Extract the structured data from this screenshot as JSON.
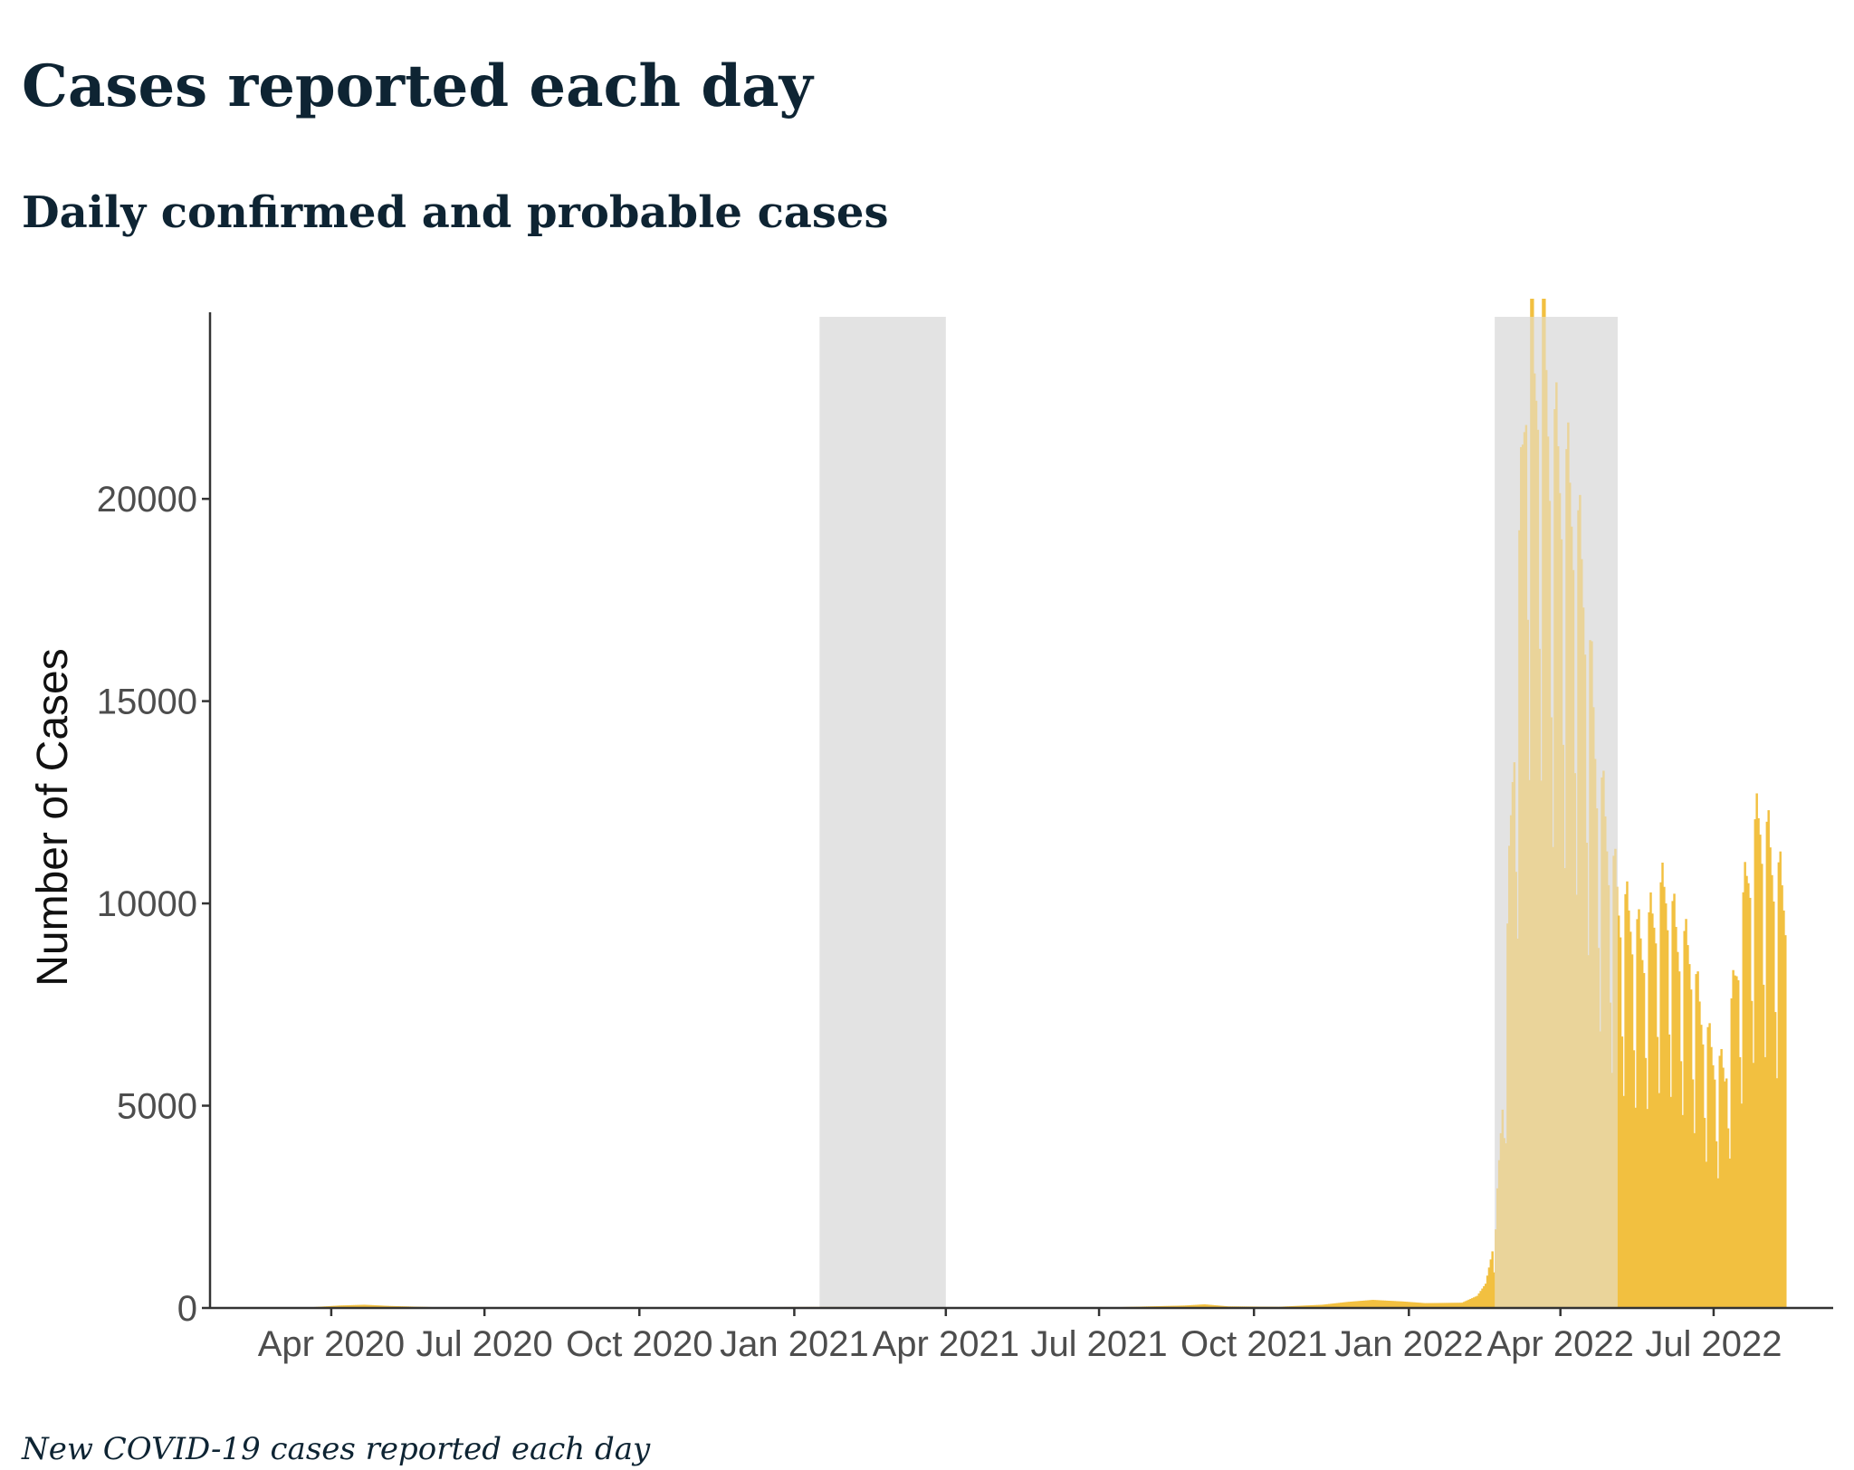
{
  "page": {
    "heading": "Cases reported each day",
    "caption": "New COVID-19 cases reported each day"
  },
  "chart_data": {
    "type": "bar",
    "title": "Daily confirmed and probable cases",
    "xlabel": "",
    "ylabel": "Number of Cases",
    "x_axis": {
      "type": "date",
      "range": [
        "2020-01-20",
        "2022-09-10"
      ],
      "ticks": [
        {
          "date": "2020-04-01",
          "label": "Apr 2020"
        },
        {
          "date": "2020-07-01",
          "label": "Jul 2020"
        },
        {
          "date": "2020-10-01",
          "label": "Oct 2020"
        },
        {
          "date": "2021-01-01",
          "label": "Jan 2021"
        },
        {
          "date": "2021-04-01",
          "label": "Apr 2021"
        },
        {
          "date": "2021-07-01",
          "label": "Jul 2021"
        },
        {
          "date": "2021-10-01",
          "label": "Oct 2021"
        },
        {
          "date": "2022-01-01",
          "label": "Jan 2022"
        },
        {
          "date": "2022-04-01",
          "label": "Apr 2022"
        },
        {
          "date": "2022-07-01",
          "label": "Jul 2022"
        }
      ]
    },
    "y_axis": {
      "ylim": [
        0,
        24500
      ],
      "ticks": [
        0,
        5000,
        10000,
        15000,
        20000
      ],
      "tick_labels": [
        "0",
        "5000",
        "10000",
        "15000",
        "20000"
      ]
    },
    "grid": false,
    "legend": "none",
    "shaded_periods": [
      {
        "start": "2021-01-16",
        "end": "2021-04-01"
      },
      {
        "start": "2022-02-21",
        "end": "2022-05-05"
      }
    ],
    "colors": {
      "bars": "#f2c040",
      "shading": "#e3e3e3",
      "axis": "#333333",
      "title": "#0e2433"
    },
    "series_anchors": [
      [
        "2020-03-01",
        0
      ],
      [
        "2020-03-20",
        20
      ],
      [
        "2020-04-05",
        60
      ],
      [
        "2020-04-20",
        80
      ],
      [
        "2020-05-05",
        50
      ],
      [
        "2020-06-01",
        20
      ],
      [
        "2020-07-01",
        15
      ],
      [
        "2020-10-01",
        15
      ],
      [
        "2020-12-01",
        20
      ],
      [
        "2021-01-10",
        25
      ],
      [
        "2021-04-01",
        20
      ],
      [
        "2021-07-01",
        10
      ],
      [
        "2021-08-20",
        60
      ],
      [
        "2021-09-01",
        90
      ],
      [
        "2021-09-15",
        40
      ],
      [
        "2021-10-15",
        30
      ],
      [
        "2021-11-10",
        80
      ],
      [
        "2021-11-25",
        150
      ],
      [
        "2021-12-10",
        200
      ],
      [
        "2021-12-28",
        160
      ],
      [
        "2022-01-10",
        120
      ],
      [
        "2022-02-01",
        130
      ],
      [
        "2022-02-10",
        300
      ],
      [
        "2022-02-15",
        600
      ],
      [
        "2022-02-21",
        1800
      ],
      [
        "2022-02-26",
        6000
      ],
      [
        "2022-03-03",
        13000
      ],
      [
        "2022-03-08",
        19000
      ],
      [
        "2022-03-12",
        24300
      ],
      [
        "2022-03-16",
        22000
      ],
      [
        "2022-03-20",
        23700
      ],
      [
        "2022-03-25",
        21000
      ],
      [
        "2022-04-01",
        20000
      ],
      [
        "2022-04-08",
        19200
      ],
      [
        "2022-04-15",
        17000
      ],
      [
        "2022-04-22",
        13000
      ],
      [
        "2022-04-29",
        11000
      ],
      [
        "2022-05-05",
        9700
      ],
      [
        "2022-05-12",
        9300
      ],
      [
        "2022-05-19",
        8600
      ],
      [
        "2022-05-26",
        9400
      ],
      [
        "2022-06-02",
        10000
      ],
      [
        "2022-06-09",
        8800
      ],
      [
        "2022-06-16",
        8500
      ],
      [
        "2022-06-23",
        7000
      ],
      [
        "2022-06-30",
        6000
      ],
      [
        "2022-07-07",
        5600
      ],
      [
        "2022-07-14",
        8200
      ],
      [
        "2022-07-21",
        10500
      ],
      [
        "2022-07-28",
        11700
      ],
      [
        "2022-08-04",
        10700
      ],
      [
        "2022-08-12",
        9700
      ]
    ]
  }
}
